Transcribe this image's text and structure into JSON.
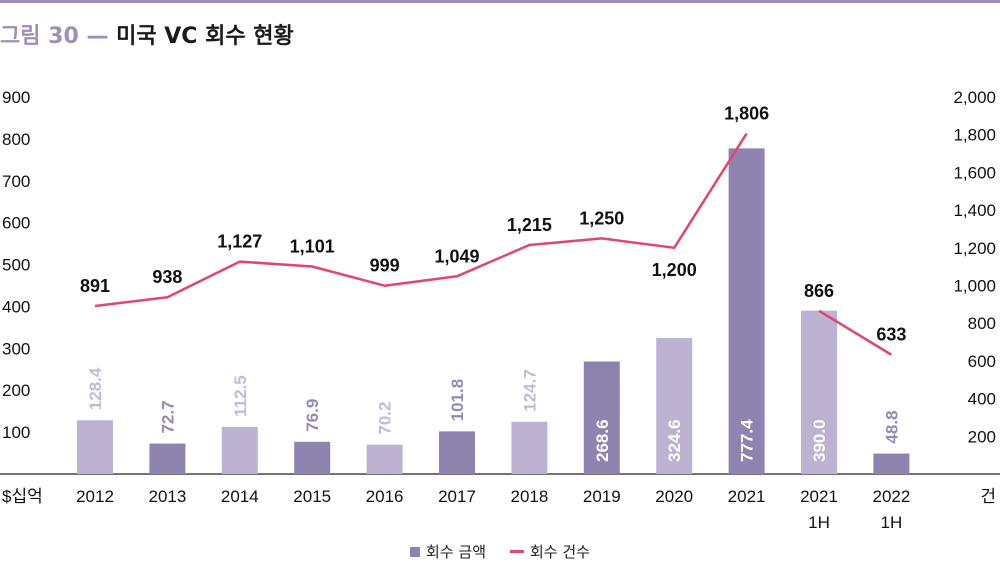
{
  "header": {
    "figure_label": "그림 30",
    "dash": "—",
    "title": "미국 VC 회수 현황"
  },
  "colors": {
    "rule": "#9d8fba",
    "bar_dark": "#8f83b0",
    "bar_light": "#bdb2d2",
    "line": "#e0466f",
    "label_dark": "#9488b4",
    "label_light": "#c3b9d7",
    "label_inside": "#ffffff"
  },
  "chart_data": {
    "type": "bar+line",
    "categories": [
      "2012",
      "2013",
      "2014",
      "2015",
      "2016",
      "2017",
      "2018",
      "2019",
      "2020",
      "2021",
      "2021\n1H",
      "2022\n1H"
    ],
    "series": [
      {
        "name": "회수 금액",
        "type": "bar",
        "axis": "left",
        "values": [
          128.4,
          72.7,
          112.5,
          76.9,
          70.2,
          101.8,
          124.7,
          268.6,
          324.6,
          777.4,
          390.0,
          48.8
        ],
        "labels": [
          "128.4",
          "72.7",
          "112.5",
          "76.9",
          "70.2",
          "101.8",
          "124.7",
          "268.6",
          "324.6",
          "777.4",
          "390.0",
          "48.8"
        ],
        "shade": [
          "light",
          "dark",
          "light",
          "dark",
          "light",
          "dark",
          "light",
          "dark",
          "light",
          "dark",
          "light",
          "dark"
        ]
      },
      {
        "name": "회수 건수",
        "type": "line",
        "axis": "right",
        "values": [
          891,
          938,
          1127,
          1101,
          999,
          1049,
          1215,
          1250,
          1200,
          1806,
          866,
          633
        ],
        "labels": [
          "891",
          "938",
          "1,127",
          "1,101",
          "999",
          "1,049",
          "1,215",
          "1,250",
          "1,200",
          "1,806",
          "866",
          "633"
        ],
        "segments": [
          [
            0,
            9
          ],
          [
            10,
            11
          ]
        ]
      }
    ],
    "y_left": {
      "unit": "$십억",
      "ylim": [
        0,
        900
      ],
      "ticks": [
        "100",
        "200",
        "300",
        "400",
        "500",
        "600",
        "700",
        "800",
        "900"
      ],
      "tick_values": [
        100,
        200,
        300,
        400,
        500,
        600,
        700,
        800,
        900
      ]
    },
    "y_right": {
      "unit": "건",
      "ylim": [
        0,
        2000
      ],
      "ticks": [
        "200",
        "400",
        "600",
        "800",
        "1,000",
        "1,200",
        "1,400",
        "1,600",
        "1,800",
        "2,000"
      ],
      "tick_values": [
        200,
        400,
        600,
        800,
        1000,
        1200,
        1400,
        1600,
        1800,
        2000
      ]
    },
    "grid": false,
    "legend": "bottom-center"
  }
}
